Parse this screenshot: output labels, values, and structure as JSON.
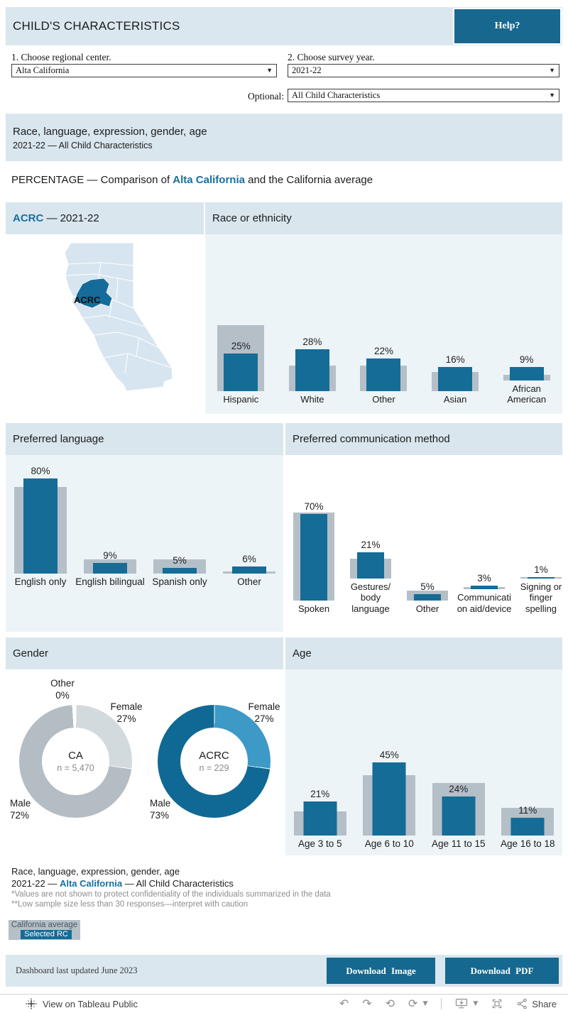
{
  "header": {
    "title": "CHILD'S CHARACTERISTICS",
    "help_label": "Help?"
  },
  "filters": {
    "regional_center": {
      "label": "1. Choose regional center.",
      "value": "Alta California"
    },
    "survey_year": {
      "label": "2. Choose survey year.",
      "value": "2021-22"
    },
    "optional": {
      "label": "Optional:",
      "value": "All Child Characteristics"
    }
  },
  "banner": {
    "title": "Race, language, expression, gender, age",
    "subtitle": "2021-22 — All Child Characteristics"
  },
  "section_title": {
    "prefix": "PERCENTAGE — Comparison of ",
    "highlight": "Alta California",
    "suffix": " and the California average"
  },
  "panels": {
    "map": {
      "header_highlight": "ACRC",
      "header_rest": " — 2021-22",
      "region_label": "ACRC"
    },
    "race": {
      "header": "Race or ethnicity"
    },
    "language": {
      "header": "Preferred language"
    },
    "communication": {
      "header": "Preferred communication method"
    },
    "gender": {
      "header": "Gender"
    },
    "age": {
      "header": "Age"
    }
  },
  "chart_data": [
    {
      "id": "race",
      "type": "bar",
      "title": "Race or ethnicity",
      "categories": [
        "Hispanic",
        "White",
        "Other",
        "Asian",
        "African American"
      ],
      "series": [
        {
          "name": "Selected RC",
          "values": [
            25,
            28,
            22,
            16,
            9
          ]
        },
        {
          "name": "California average",
          "values": [
            44,
            17,
            17,
            13,
            4
          ]
        }
      ]
    },
    {
      "id": "language",
      "type": "bar",
      "title": "Preferred language",
      "categories": [
        "English only",
        "English bilingual",
        "Spanish only",
        "Other"
      ],
      "series": [
        {
          "name": "Selected RC",
          "values": [
            80,
            9,
            5,
            6
          ]
        },
        {
          "name": "California average",
          "values": [
            73,
            12,
            12,
            2
          ]
        }
      ]
    },
    {
      "id": "communication",
      "type": "bar",
      "title": "Preferred communication method",
      "categories": [
        "Spoken",
        "Gestures/ body language",
        "Other",
        "Communication aid/device",
        "Signing or finger spelling"
      ],
      "series": [
        {
          "name": "Selected RC",
          "values": [
            70,
            21,
            5,
            3,
            1
          ]
        },
        {
          "name": "California average",
          "values": [
            71,
            16,
            8,
            2,
            1
          ]
        }
      ]
    },
    {
      "id": "age",
      "type": "bar",
      "title": "Age",
      "categories": [
        "Age 3 to 5",
        "Age 6 to 10",
        "Age 11 to 15",
        "Age 16 to 18"
      ],
      "series": [
        {
          "name": "Selected RC",
          "values": [
            21,
            45,
            24,
            11
          ]
        },
        {
          "name": "California average",
          "values": [
            15,
            37,
            32,
            17
          ]
        }
      ]
    },
    {
      "id": "gender_ca",
      "type": "donut",
      "title": "Gender — California",
      "center_label": "CA",
      "n_label": "n = 5,470",
      "slices": [
        {
          "label": "Female",
          "value": 27
        },
        {
          "label": "Male",
          "value": 72
        },
        {
          "label": "Other",
          "value": 0
        }
      ]
    },
    {
      "id": "gender_acrc",
      "type": "donut",
      "title": "Gender — ACRC",
      "center_label": "ACRC",
      "n_label": "n = 229",
      "slices": [
        {
          "label": "Female",
          "value": 27
        },
        {
          "label": "Male",
          "value": 73
        }
      ]
    }
  ],
  "footer": {
    "line1": "Race, language, expression, gender, age",
    "line2_prefix": "2021-22 — ",
    "line2_highlight": "Alta California",
    "line2_suffix": " — All Child Characteristics",
    "note1": "*Values are not shown to protect confidentiality of the individuals summarized in the data",
    "note2": " **Low sample size less than 30 responses—interpret with caution"
  },
  "legend": {
    "ca": "California average",
    "rc": "Selected RC"
  },
  "bottom_bar": {
    "updated": "Dashboard last updated June 2023",
    "download_image": "Download Image",
    "download_pdf": "Download PDF"
  },
  "toolbar": {
    "view_label": "View on Tableau Public",
    "share_label": "Share"
  },
  "colors": {
    "rc_blue": "#146c97",
    "ca_gray": "#b5bfc7",
    "female_blue": "#3d99c6",
    "male_blue": "#0f6994",
    "female_gray": "#d3dade",
    "male_gray": "#b4bdc4",
    "band_blue": "#d9e6ee",
    "panel_blue": "#edf4f8",
    "link_blue": "#1670a0"
  }
}
